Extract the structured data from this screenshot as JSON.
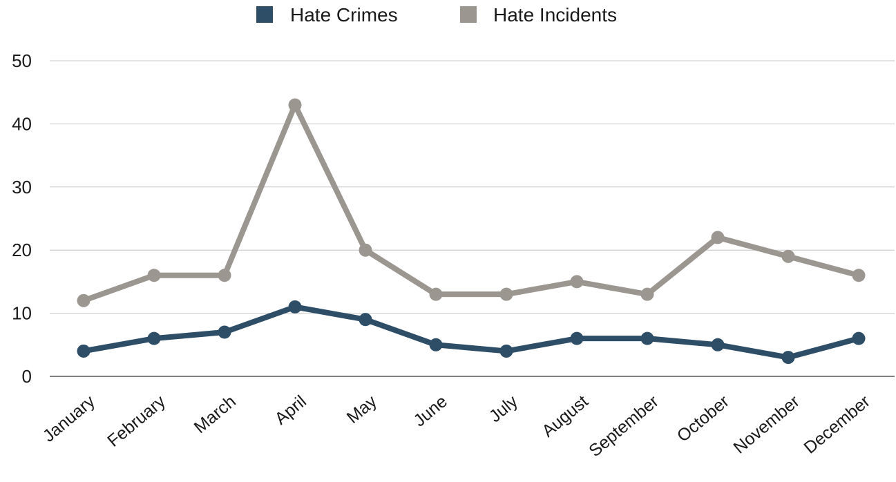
{
  "chart_data": {
    "type": "line",
    "title": "",
    "xlabel": "",
    "ylabel": "",
    "categories": [
      "January",
      "February",
      "March",
      "April",
      "May",
      "June",
      "July",
      "August",
      "September",
      "October",
      "November",
      "December"
    ],
    "series": [
      {
        "name": "Hate Crimes",
        "color": "#2e4d66",
        "values": [
          4,
          6,
          7,
          11,
          9,
          5,
          4,
          6,
          6,
          5,
          3,
          6
        ]
      },
      {
        "name": "Hate Incidents",
        "color": "#9c9690",
        "values": [
          12,
          16,
          16,
          43,
          20,
          13,
          13,
          15,
          13,
          22,
          19,
          16
        ]
      }
    ],
    "yticks": [
      0,
      10,
      20,
      30,
      40,
      50
    ],
    "ylim": [
      0,
      50
    ],
    "grid": true,
    "legend_position": "top-center"
  }
}
